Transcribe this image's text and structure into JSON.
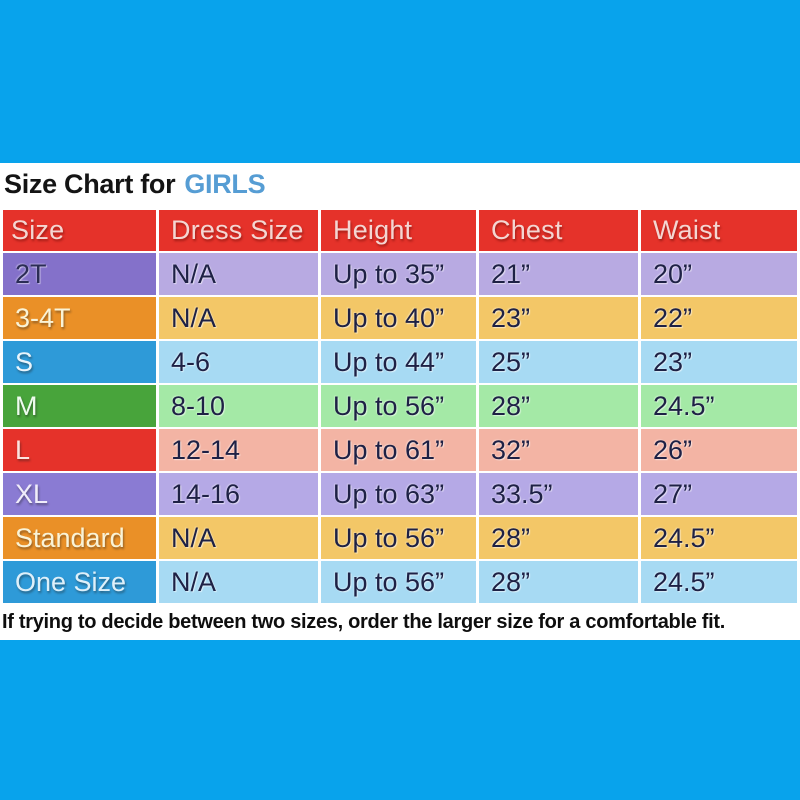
{
  "page": {
    "background_color": "#08a3ec",
    "panel_color": "#ffffff"
  },
  "title": {
    "text": "Size Chart for",
    "highlight": "GIRLS",
    "text_color": "#141414",
    "highlight_color": "#569dd4"
  },
  "table": {
    "header": {
      "bg": "#e5322a",
      "text_color": "#f4d6d2",
      "columns": [
        "Size",
        "Dress Size",
        "Height",
        "Chest",
        "Waist"
      ]
    },
    "value_text_color": "#1e2145",
    "rows": [
      {
        "size": "2T",
        "dress_size": "N/A",
        "height": "Up to 35”",
        "chest": "21”",
        "waist": "20”",
        "size_bg": "#8471ca",
        "cells_bg": "#b8aae2",
        "size_text_color": "#2b2d55",
        "size_text_style": "dark"
      },
      {
        "size": "3-4T",
        "dress_size": "N/A",
        "height": "Up to 40”",
        "chest": "23”",
        "waist": "22”",
        "size_bg": "#ea9027",
        "cells_bg": "#f3c767",
        "size_text_color": "#faf3d6",
        "size_text_style": "light"
      },
      {
        "size": "S",
        "dress_size": "4-6",
        "height": "Up to 44”",
        "chest": "25”",
        "waist": "23”",
        "size_bg": "#2e9ad8",
        "cells_bg": "#a7daf3",
        "size_text_color": "#eaf5fc",
        "size_text_style": "light"
      },
      {
        "size": "M",
        "dress_size": "8-10",
        "height": "Up to 56”",
        "chest": "28”",
        "waist": "24.5”",
        "size_bg": "#48a43b",
        "cells_bg": "#a4e9a6",
        "size_text_color": "#eefbee",
        "size_text_style": "light"
      },
      {
        "size": "L",
        "dress_size": "12-14",
        "height": "Up to 61”",
        "chest": "32”",
        "waist": "26”",
        "size_bg": "#e5322a",
        "cells_bg": "#f3b4a4",
        "size_text_color": "#fce4df",
        "size_text_style": "light"
      },
      {
        "size": "XL",
        "dress_size": "14-16",
        "height": "Up to 63”",
        "chest": "33.5”",
        "waist": "27”",
        "size_bg": "#8a7bd3",
        "cells_bg": "#b5a9e6",
        "size_text_color": "#f0edfa",
        "size_text_style": "light"
      },
      {
        "size": "Standard",
        "dress_size": "N/A",
        "height": "Up to 56”",
        "chest": "28”",
        "waist": "24.5”",
        "size_bg": "#ea9027",
        "cells_bg": "#f3c767",
        "size_text_color": "#faf3d6",
        "size_text_style": "light"
      },
      {
        "size": "One Size",
        "dress_size": "N/A",
        "height": "Up to 56”",
        "chest": "28”",
        "waist": "24.5”",
        "size_bg": "#2e9ad8",
        "cells_bg": "#a7daf3",
        "size_text_color": "#def0fa",
        "size_text_style": "light"
      }
    ]
  },
  "footer": {
    "note": "If trying to decide between two sizes, order the larger size for a comfortable fit."
  },
  "chart_data": {
    "type": "table",
    "title": "Size Chart for GIRLS",
    "columns": [
      "Size",
      "Dress Size",
      "Height",
      "Chest",
      "Waist"
    ],
    "rows": [
      [
        "2T",
        "N/A",
        "Up to 35”",
        "21”",
        "20”"
      ],
      [
        "3-4T",
        "N/A",
        "Up to 40”",
        "23”",
        "22”"
      ],
      [
        "S",
        "4-6",
        "Up to 44”",
        "25”",
        "23”"
      ],
      [
        "M",
        "8-10",
        "Up to 56”",
        "28”",
        "24.5”"
      ],
      [
        "L",
        "12-14",
        "Up to 61”",
        "32”",
        "26”"
      ],
      [
        "XL",
        "14-16",
        "Up to 63”",
        "33.5”",
        "27”"
      ],
      [
        "Standard",
        "N/A",
        "Up to 56”",
        "28”",
        "24.5”"
      ],
      [
        "One Size",
        "N/A",
        "Up to 56”",
        "28”",
        "24.5”"
      ]
    ],
    "annotation": "If trying to decide between two sizes, order the larger size for a comfortable fit."
  }
}
